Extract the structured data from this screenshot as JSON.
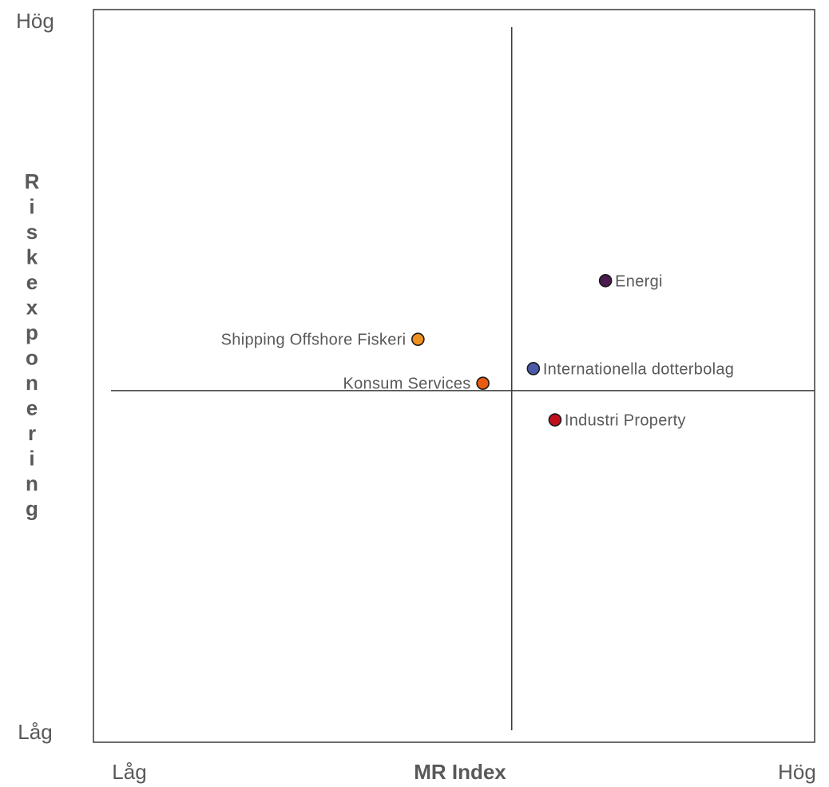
{
  "chart_data": {
    "type": "scatter",
    "xlabel": "MR Index",
    "ylabel": "Riskexponering",
    "x_tick_low": "Låg",
    "x_tick_high": "Hög",
    "y_tick_low": "Låg",
    "y_tick_high": "Hög",
    "xlim": [
      0,
      10
    ],
    "ylim": [
      0,
      10
    ],
    "divider_x": 5.8,
    "divider_y": 4.8,
    "grid": false,
    "legend": "none",
    "points": [
      {
        "name": "Energi",
        "x": 7.1,
        "y": 6.3,
        "color": "#4b1a4f",
        "label_side": "right"
      },
      {
        "name": "Shipping Offshore Fiskeri",
        "x": 4.5,
        "y": 5.5,
        "color": "#f0901e",
        "label_side": "left"
      },
      {
        "name": "Internationella dotterbolag",
        "x": 6.1,
        "y": 5.1,
        "color": "#4a5aa8",
        "label_side": "right"
      },
      {
        "name": "Konsum Services",
        "x": 5.4,
        "y": 4.9,
        "color": "#e85c12",
        "label_side": "left"
      },
      {
        "name": "Industri Property",
        "x": 6.4,
        "y": 4.4,
        "color": "#c0101e",
        "label_side": "right"
      }
    ]
  }
}
